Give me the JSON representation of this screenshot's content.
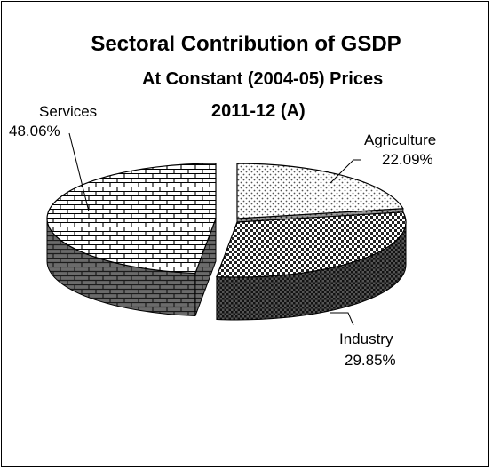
{
  "chart_data": {
    "type": "pie",
    "title": "Sectoral Contribution of GSDP",
    "subtitle": "At Constant (2004-05) Prices",
    "period": "2011-12 (A)",
    "slices": [
      {
        "name": "Agriculture",
        "value": 22.09,
        "label": "22.09%"
      },
      {
        "name": "Industry",
        "value": 29.85,
        "label": "29.85%"
      },
      {
        "name": "Services",
        "value": 48.06,
        "label": "48.06%"
      }
    ],
    "style": "3d-exploded"
  }
}
